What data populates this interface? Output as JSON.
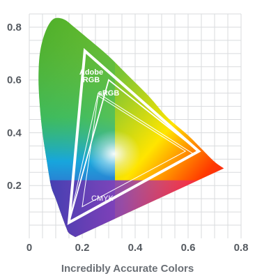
{
  "chart_data": {
    "type": "scatter",
    "title": "",
    "xlabel": "Incredibly Accurate Colors",
    "ylabel": "",
    "xlim": [
      0,
      0.8
    ],
    "ylim": [
      0,
      0.85
    ],
    "grid": true,
    "x_ticks": [
      {
        "value": 0,
        "label": "0"
      },
      {
        "value": 0.2,
        "label": "0.2"
      },
      {
        "value": 0.4,
        "label": "0.4"
      },
      {
        "value": 0.6,
        "label": "0.6"
      },
      {
        "value": 0.8,
        "label": "0.8"
      }
    ],
    "y_ticks": [
      {
        "value": 0.2,
        "label": "0.2"
      },
      {
        "value": 0.4,
        "label": "0.4"
      },
      {
        "value": 0.6,
        "label": "0.6"
      },
      {
        "value": 0.8,
        "label": "0.8"
      }
    ],
    "spectral_locus": [
      [
        0.174,
        0.005
      ],
      [
        0.15,
        0.02
      ],
      [
        0.14,
        0.04
      ],
      [
        0.125,
        0.08
      ],
      [
        0.1,
        0.15
      ],
      [
        0.082,
        0.2
      ],
      [
        0.065,
        0.3
      ],
      [
        0.05,
        0.4
      ],
      [
        0.04,
        0.5
      ],
      [
        0.035,
        0.6
      ],
      [
        0.04,
        0.7
      ],
      [
        0.06,
        0.78
      ],
      [
        0.09,
        0.83
      ],
      [
        0.13,
        0.83
      ],
      [
        0.17,
        0.8
      ],
      [
        0.23,
        0.75
      ],
      [
        0.3,
        0.69
      ],
      [
        0.37,
        0.62
      ],
      [
        0.45,
        0.54
      ],
      [
        0.52,
        0.46
      ],
      [
        0.6,
        0.39
      ],
      [
        0.65,
        0.34
      ],
      [
        0.7,
        0.29
      ],
      [
        0.735,
        0.265
      ]
    ],
    "gamuts": [
      {
        "name": "Adobe RGB",
        "points": [
          [
            0.64,
            0.33
          ],
          [
            0.21,
            0.71
          ],
          [
            0.15,
            0.06
          ]
        ]
      },
      {
        "name": "sRGB",
        "points": [
          [
            0.64,
            0.33
          ],
          [
            0.3,
            0.6
          ],
          [
            0.15,
            0.06
          ]
        ]
      },
      {
        "name": "",
        "points": [
          [
            0.62,
            0.32
          ],
          [
            0.26,
            0.55
          ],
          [
            0.15,
            0.06
          ]
        ]
      },
      {
        "name": "CMYK",
        "points": [
          [
            0.26,
            0.54
          ],
          [
            0.59,
            0.33
          ],
          [
            0.2,
            0.12
          ]
        ]
      }
    ],
    "colors": {
      "grid": "#d9dbde",
      "gamut_line": "#ffffff",
      "white_point": "#ffffff"
    }
  }
}
